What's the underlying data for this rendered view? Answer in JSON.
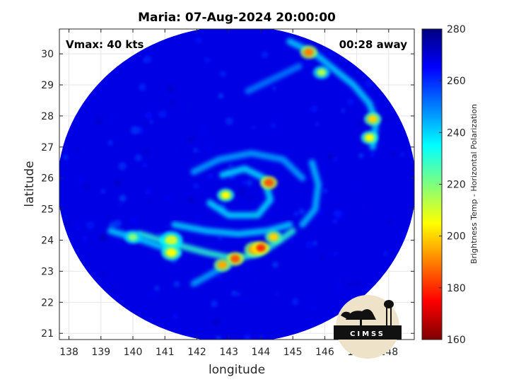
{
  "chart_data": {
    "type": "heatmap",
    "title": "Maria: 07-Aug-2024 20:00:00",
    "xlabel": "longitude",
    "ylabel": "latitude",
    "xlim": [
      137.7,
      148.8
    ],
    "ylim": [
      20.8,
      30.8
    ],
    "xticks": [
      138,
      139,
      140,
      141,
      142,
      143,
      144,
      145,
      146,
      147,
      148
    ],
    "yticks": [
      21,
      22,
      23,
      24,
      25,
      26,
      27,
      28,
      29,
      30
    ],
    "grid": true,
    "annotations": {
      "vmax": "Vmax: 40 kts",
      "time_away": "00:28 away"
    },
    "colorbar": {
      "label": "Brightness Temp - Horizontal Polarization",
      "range": [
        160,
        280
      ],
      "ticks": [
        160,
        180,
        200,
        220,
        240,
        260,
        280
      ],
      "colormap": "jet"
    },
    "swath": {
      "center": [
        143.25,
        25.8
      ],
      "radius_lon": 5.6,
      "radius_lat": 5.1
    },
    "background_value": 268,
    "features": [
      {
        "kind": "band",
        "value": 240,
        "points": [
          [
            141.3,
            24.5
          ],
          [
            142.3,
            24.3
          ],
          [
            143.3,
            24.2
          ],
          [
            144.2,
            24.3
          ],
          [
            144.9,
            24.5
          ]
        ]
      },
      {
        "kind": "band",
        "value": 230,
        "points": [
          [
            140.2,
            24.2
          ],
          [
            141.2,
            23.9
          ],
          [
            142.3,
            23.6
          ],
          [
            143.2,
            23.4
          ],
          [
            144.0,
            23.6
          ],
          [
            144.6,
            24.0
          ],
          [
            145.0,
            24.3
          ]
        ]
      },
      {
        "kind": "band",
        "value": 240,
        "points": [
          [
            139.3,
            24.3
          ],
          [
            140.3,
            24.0
          ],
          [
            141.4,
            23.6
          ]
        ]
      },
      {
        "kind": "band",
        "value": 238,
        "points": [
          [
            142.8,
            26.1
          ],
          [
            143.5,
            26.3
          ],
          [
            144.1,
            26.0
          ],
          [
            144.3,
            25.3
          ],
          [
            143.9,
            24.8
          ],
          [
            143.0,
            24.8
          ],
          [
            142.4,
            25.2
          ]
        ]
      },
      {
        "kind": "band",
        "value": 245,
        "points": [
          [
            141.9,
            26.2
          ],
          [
            142.7,
            26.6
          ],
          [
            143.7,
            26.8
          ],
          [
            144.7,
            26.6
          ],
          [
            145.3,
            26.0
          ]
        ]
      },
      {
        "kind": "band",
        "value": 242,
        "points": [
          [
            145.6,
            26.5
          ],
          [
            145.8,
            25.8
          ],
          [
            145.7,
            25.0
          ],
          [
            145.3,
            24.5
          ]
        ]
      },
      {
        "kind": "band",
        "value": 245,
        "points": [
          [
            141.9,
            22.6
          ],
          [
            142.6,
            23.0
          ],
          [
            143.3,
            23.4
          ]
        ]
      },
      {
        "kind": "band",
        "value": 240,
        "points": [
          [
            144.9,
            30.4
          ],
          [
            145.7,
            30.0
          ],
          [
            146.3,
            29.5
          ],
          [
            146.9,
            29.0
          ],
          [
            147.4,
            28.4
          ],
          [
            147.6,
            27.8
          ],
          [
            147.5,
            27.0
          ]
        ]
      },
      {
        "kind": "band",
        "value": 250,
        "points": [
          [
            143.6,
            28.8
          ],
          [
            144.4,
            29.2
          ],
          [
            145.2,
            29.6
          ]
        ]
      },
      {
        "kind": "blob",
        "value": 210,
        "lon": 141.2,
        "lat": 24.0,
        "size": 0.4
      },
      {
        "kind": "blob",
        "value": 205,
        "lon": 141.2,
        "lat": 23.6,
        "size": 0.35
      },
      {
        "kind": "blob",
        "value": 195,
        "lon": 143.8,
        "lat": 23.7,
        "size": 0.35
      },
      {
        "kind": "blob",
        "value": 180,
        "lon": 144.0,
        "lat": 23.75,
        "size": 0.3
      },
      {
        "kind": "blob",
        "value": 185,
        "lon": 143.2,
        "lat": 23.4,
        "size": 0.3
      },
      {
        "kind": "blob",
        "value": 195,
        "lon": 142.8,
        "lat": 23.2,
        "size": 0.3
      },
      {
        "kind": "blob",
        "value": 200,
        "lon": 144.4,
        "lat": 24.1,
        "size": 0.3
      },
      {
        "kind": "blob",
        "value": 185,
        "lon": 144.25,
        "lat": 25.85,
        "size": 0.3
      },
      {
        "kind": "blob",
        "value": 205,
        "lon": 142.9,
        "lat": 25.45,
        "size": 0.3
      },
      {
        "kind": "blob",
        "value": 190,
        "lon": 145.5,
        "lat": 30.05,
        "size": 0.3
      },
      {
        "kind": "blob",
        "value": 200,
        "lon": 147.5,
        "lat": 27.9,
        "size": 0.3
      },
      {
        "kind": "blob",
        "value": 205,
        "lon": 147.4,
        "lat": 27.3,
        "size": 0.3
      },
      {
        "kind": "blob",
        "value": 215,
        "lon": 145.9,
        "lat": 29.4,
        "size": 0.3
      },
      {
        "kind": "blob",
        "value": 220,
        "lon": 140.0,
        "lat": 24.1,
        "size": 0.3
      }
    ]
  },
  "logo": {
    "text": "CIMSS"
  }
}
